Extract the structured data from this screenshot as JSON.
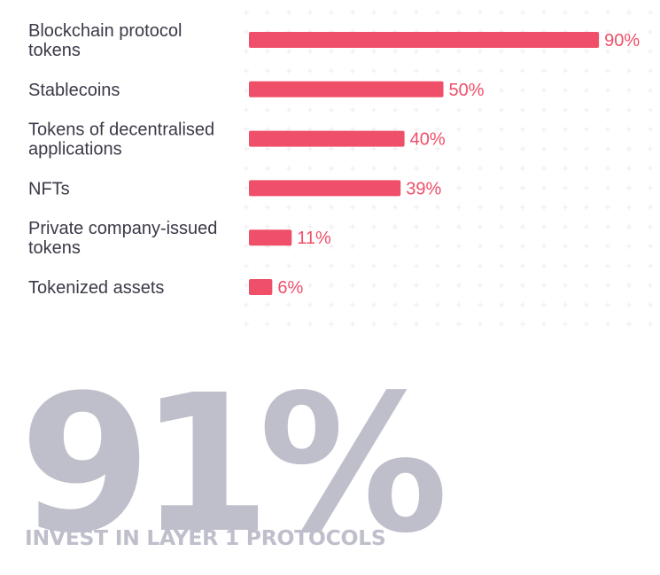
{
  "colors": {
    "bar": "#ef4f69",
    "value_text": "#ef4f69",
    "category_text": "#3a3a48",
    "stat_text": "#bfbfcc",
    "grid_marks": "#ecebef"
  },
  "chart_data": {
    "type": "bar",
    "orientation": "horizontal",
    "categories": [
      [
        "Blockchain protocol",
        "tokens"
      ],
      [
        "Stablecoins"
      ],
      [
        "Tokens of decentralised",
        "applications"
      ],
      [
        "NFTs"
      ],
      [
        "Private company-issued",
        "tokens"
      ],
      [
        "Tokenized assets"
      ]
    ],
    "values": [
      90,
      50,
      40,
      39,
      11,
      6
    ],
    "value_labels": [
      "90%",
      "50%",
      "40%",
      "39%",
      "11%",
      "6%"
    ],
    "unit": "%",
    "xlim": [
      0,
      100
    ],
    "grid": false,
    "legend": "none"
  },
  "highlight": {
    "value": "91%",
    "caption": "INVEST IN LAYER 1 PROTOCOLS"
  }
}
